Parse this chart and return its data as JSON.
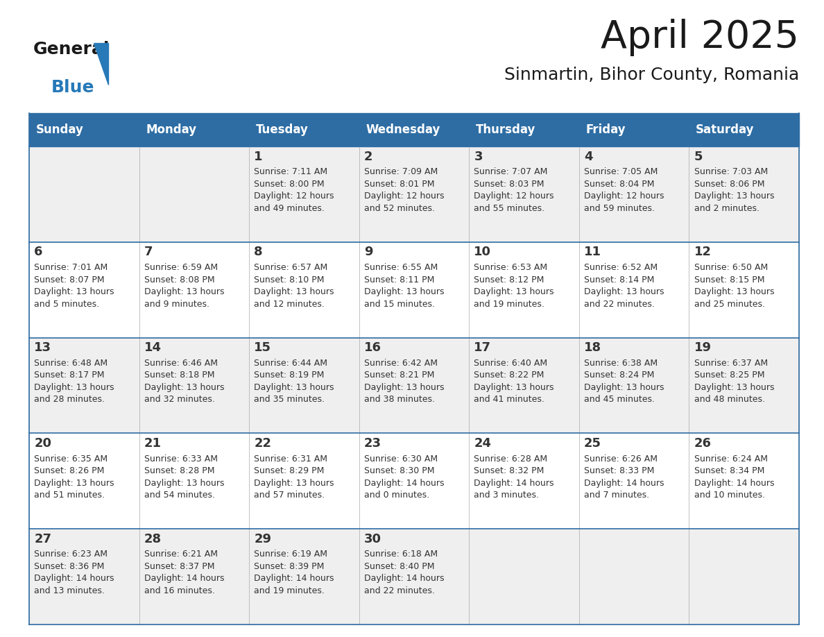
{
  "title": "April 2025",
  "subtitle": "Sinmartin, Bihor County, Romania",
  "header_bg_color": "#2E6DA4",
  "header_text_color": "#FFFFFF",
  "cell_bg_odd": "#EFEFEF",
  "cell_bg_even": "#FFFFFF",
  "text_color": "#333333",
  "border_color": "#2E6DA4",
  "days_of_week": [
    "Sunday",
    "Monday",
    "Tuesday",
    "Wednesday",
    "Thursday",
    "Friday",
    "Saturday"
  ],
  "weeks": [
    [
      {
        "day": "",
        "info": ""
      },
      {
        "day": "",
        "info": ""
      },
      {
        "day": "1",
        "info": "Sunrise: 7:11 AM\nSunset: 8:00 PM\nDaylight: 12 hours\nand 49 minutes."
      },
      {
        "day": "2",
        "info": "Sunrise: 7:09 AM\nSunset: 8:01 PM\nDaylight: 12 hours\nand 52 minutes."
      },
      {
        "day": "3",
        "info": "Sunrise: 7:07 AM\nSunset: 8:03 PM\nDaylight: 12 hours\nand 55 minutes."
      },
      {
        "day": "4",
        "info": "Sunrise: 7:05 AM\nSunset: 8:04 PM\nDaylight: 12 hours\nand 59 minutes."
      },
      {
        "day": "5",
        "info": "Sunrise: 7:03 AM\nSunset: 8:06 PM\nDaylight: 13 hours\nand 2 minutes."
      }
    ],
    [
      {
        "day": "6",
        "info": "Sunrise: 7:01 AM\nSunset: 8:07 PM\nDaylight: 13 hours\nand 5 minutes."
      },
      {
        "day": "7",
        "info": "Sunrise: 6:59 AM\nSunset: 8:08 PM\nDaylight: 13 hours\nand 9 minutes."
      },
      {
        "day": "8",
        "info": "Sunrise: 6:57 AM\nSunset: 8:10 PM\nDaylight: 13 hours\nand 12 minutes."
      },
      {
        "day": "9",
        "info": "Sunrise: 6:55 AM\nSunset: 8:11 PM\nDaylight: 13 hours\nand 15 minutes."
      },
      {
        "day": "10",
        "info": "Sunrise: 6:53 AM\nSunset: 8:12 PM\nDaylight: 13 hours\nand 19 minutes."
      },
      {
        "day": "11",
        "info": "Sunrise: 6:52 AM\nSunset: 8:14 PM\nDaylight: 13 hours\nand 22 minutes."
      },
      {
        "day": "12",
        "info": "Sunrise: 6:50 AM\nSunset: 8:15 PM\nDaylight: 13 hours\nand 25 minutes."
      }
    ],
    [
      {
        "day": "13",
        "info": "Sunrise: 6:48 AM\nSunset: 8:17 PM\nDaylight: 13 hours\nand 28 minutes."
      },
      {
        "day": "14",
        "info": "Sunrise: 6:46 AM\nSunset: 8:18 PM\nDaylight: 13 hours\nand 32 minutes."
      },
      {
        "day": "15",
        "info": "Sunrise: 6:44 AM\nSunset: 8:19 PM\nDaylight: 13 hours\nand 35 minutes."
      },
      {
        "day": "16",
        "info": "Sunrise: 6:42 AM\nSunset: 8:21 PM\nDaylight: 13 hours\nand 38 minutes."
      },
      {
        "day": "17",
        "info": "Sunrise: 6:40 AM\nSunset: 8:22 PM\nDaylight: 13 hours\nand 41 minutes."
      },
      {
        "day": "18",
        "info": "Sunrise: 6:38 AM\nSunset: 8:24 PM\nDaylight: 13 hours\nand 45 minutes."
      },
      {
        "day": "19",
        "info": "Sunrise: 6:37 AM\nSunset: 8:25 PM\nDaylight: 13 hours\nand 48 minutes."
      }
    ],
    [
      {
        "day": "20",
        "info": "Sunrise: 6:35 AM\nSunset: 8:26 PM\nDaylight: 13 hours\nand 51 minutes."
      },
      {
        "day": "21",
        "info": "Sunrise: 6:33 AM\nSunset: 8:28 PM\nDaylight: 13 hours\nand 54 minutes."
      },
      {
        "day": "22",
        "info": "Sunrise: 6:31 AM\nSunset: 8:29 PM\nDaylight: 13 hours\nand 57 minutes."
      },
      {
        "day": "23",
        "info": "Sunrise: 6:30 AM\nSunset: 8:30 PM\nDaylight: 14 hours\nand 0 minutes."
      },
      {
        "day": "24",
        "info": "Sunrise: 6:28 AM\nSunset: 8:32 PM\nDaylight: 14 hours\nand 3 minutes."
      },
      {
        "day": "25",
        "info": "Sunrise: 6:26 AM\nSunset: 8:33 PM\nDaylight: 14 hours\nand 7 minutes."
      },
      {
        "day": "26",
        "info": "Sunrise: 6:24 AM\nSunset: 8:34 PM\nDaylight: 14 hours\nand 10 minutes."
      }
    ],
    [
      {
        "day": "27",
        "info": "Sunrise: 6:23 AM\nSunset: 8:36 PM\nDaylight: 14 hours\nand 13 minutes."
      },
      {
        "day": "28",
        "info": "Sunrise: 6:21 AM\nSunset: 8:37 PM\nDaylight: 14 hours\nand 16 minutes."
      },
      {
        "day": "29",
        "info": "Sunrise: 6:19 AM\nSunset: 8:39 PM\nDaylight: 14 hours\nand 19 minutes."
      },
      {
        "day": "30",
        "info": "Sunrise: 6:18 AM\nSunset: 8:40 PM\nDaylight: 14 hours\nand 22 minutes."
      },
      {
        "day": "",
        "info": ""
      },
      {
        "day": "",
        "info": ""
      },
      {
        "day": "",
        "info": ""
      }
    ]
  ],
  "logo_text_general": "General",
  "logo_text_blue": "Blue",
  "logo_color_general": "#1a1a1a",
  "logo_color_blue": "#2779B8",
  "title_fontsize": 40,
  "subtitle_fontsize": 18,
  "header_fontsize": 12,
  "day_num_fontsize": 13,
  "cell_text_fontsize": 9
}
